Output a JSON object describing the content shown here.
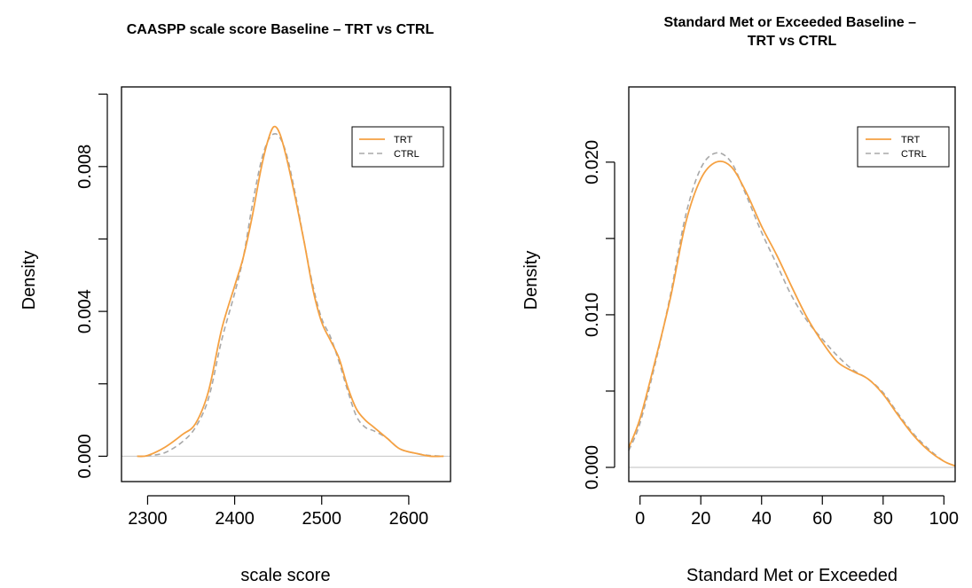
{
  "chart_data": [
    {
      "type": "line",
      "title": "CAASPP scale score Baseline – TRT vs CTRL",
      "xlabel": "scale score",
      "ylabel": "Density",
      "xlim": [
        2270,
        2648
      ],
      "ylim": [
        -0.0007,
        0.0102
      ],
      "xticks": [
        2300,
        2400,
        2500,
        2600
      ],
      "xtick_labels": [
        "2300",
        "2400",
        "2500",
        "2600"
      ],
      "yticks": [
        0,
        0.002,
        0.004,
        0.006,
        0.008,
        0.01
      ],
      "ytick_labels": [
        "0.000",
        "",
        "0.004",
        "",
        "0.008",
        ""
      ],
      "legend": "top-right",
      "series": [
        {
          "name": "TRT",
          "color": "#f5a142",
          "dash": "solid",
          "x": [
            2288,
            2300,
            2320,
            2340,
            2355,
            2370,
            2385,
            2400,
            2410,
            2420,
            2430,
            2438,
            2445,
            2452,
            2460,
            2470,
            2480,
            2490,
            2500,
            2510,
            2520,
            2530,
            2540,
            2550,
            2560,
            2575,
            2590,
            2610,
            2625,
            2640
          ],
          "y": [
            0.0,
            2e-05,
            0.00025,
            0.0006,
            0.0009,
            0.0018,
            0.0035,
            0.0047,
            0.0055,
            0.0066,
            0.0079,
            0.0087,
            0.0091,
            0.0089,
            0.0082,
            0.0071,
            0.0059,
            0.0046,
            0.0037,
            0.0032,
            0.0027,
            0.0019,
            0.0013,
            0.001,
            0.0008,
            0.0005,
            0.0002,
            7e-05,
            0.0,
            0.0
          ]
        },
        {
          "name": "CTRL",
          "color": "#a8a8a8",
          "dash": "dashed",
          "x": [
            2288,
            2300,
            2320,
            2340,
            2355,
            2370,
            2385,
            2400,
            2410,
            2420,
            2430,
            2438,
            2445,
            2452,
            2460,
            2470,
            2480,
            2490,
            2500,
            2510,
            2520,
            2530,
            2540,
            2550,
            2560,
            2575,
            2590,
            2610,
            2625,
            2640
          ],
          "y": [
            0.0,
            1e-05,
            0.0001,
            0.0004,
            0.0008,
            0.0016,
            0.0032,
            0.0045,
            0.0055,
            0.0069,
            0.0081,
            0.0087,
            0.0089,
            0.0088,
            0.0083,
            0.0072,
            0.0059,
            0.0047,
            0.0038,
            0.0033,
            0.0026,
            0.0018,
            0.0011,
            0.0008,
            0.0007,
            0.0005,
            0.0002,
            7e-05,
            2e-05,
            0.0
          ]
        }
      ]
    },
    {
      "type": "line",
      "title": "Standard Met or Exceeded Baseline – TRT vs CTRL",
      "xlabel": "Standard Met or Exceeded",
      "ylabel": "Density",
      "xlim": [
        -3.7,
        103.7
      ],
      "ylim": [
        -0.00093,
        0.02493
      ],
      "xticks": [
        0,
        20,
        40,
        60,
        80,
        100
      ],
      "xtick_labels": [
        "0",
        "20",
        "40",
        "60",
        "80",
        "100"
      ],
      "yticks": [
        0,
        0.005,
        0.01,
        0.015,
        0.02
      ],
      "ytick_labels": [
        "0.000",
        "",
        "0.010",
        "",
        "0.020"
      ],
      "legend": "top-right",
      "series": [
        {
          "name": "TRT",
          "color": "#f5a142",
          "dash": "solid",
          "x": [
            -3.7,
            0,
            5,
            10,
            15,
            20,
            25,
            30,
            35,
            40,
            45,
            50,
            55,
            60,
            65,
            70,
            75,
            80,
            85,
            90,
            95,
            100,
            103.7
          ],
          "y": [
            0.0013,
            0.0032,
            0.007,
            0.0111,
            0.016,
            0.0189,
            0.02,
            0.0197,
            0.018,
            0.0158,
            0.0139,
            0.0118,
            0.0098,
            0.0082,
            0.0069,
            0.0063,
            0.0058,
            0.0048,
            0.0034,
            0.0021,
            0.0011,
            0.0004,
            0.0001
          ]
        },
        {
          "name": "CTRL",
          "color": "#a8a8a8",
          "dash": "dashed",
          "x": [
            -3.7,
            0,
            5,
            10,
            15,
            20,
            25,
            30,
            35,
            40,
            45,
            50,
            55,
            60,
            65,
            70,
            75,
            80,
            85,
            90,
            95,
            100,
            103.7
          ],
          "y": [
            0.0011,
            0.0029,
            0.0068,
            0.0113,
            0.0165,
            0.0196,
            0.0206,
            0.02,
            0.0178,
            0.0154,
            0.0133,
            0.0112,
            0.0096,
            0.0084,
            0.0073,
            0.0064,
            0.0058,
            0.0049,
            0.0035,
            0.0022,
            0.0012,
            0.0004,
            0.0001
          ]
        }
      ]
    }
  ]
}
